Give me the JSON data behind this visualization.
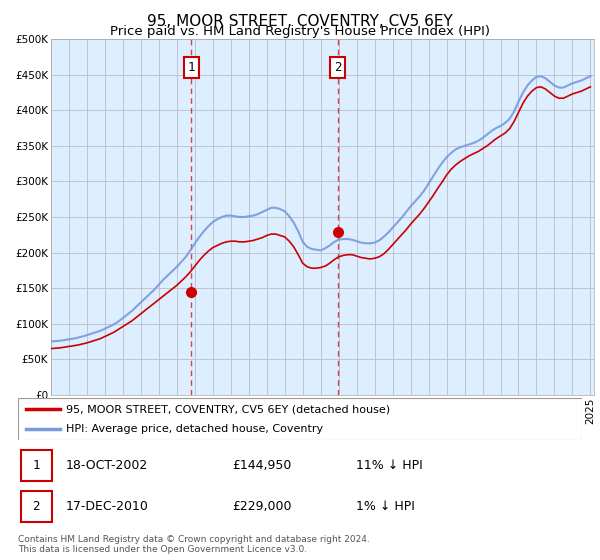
{
  "title": "95, MOOR STREET, COVENTRY, CV5 6EY",
  "subtitle": "Price paid vs. HM Land Registry's House Price Index (HPI)",
  "ylim": [
    0,
    500000
  ],
  "yticks": [
    0,
    50000,
    100000,
    150000,
    200000,
    250000,
    300000,
    350000,
    400000,
    450000,
    500000
  ],
  "ytick_labels": [
    "£0",
    "£50K",
    "£100K",
    "£150K",
    "£200K",
    "£250K",
    "£300K",
    "£350K",
    "£400K",
    "£450K",
    "£500K"
  ],
  "background_color": "#ffffff",
  "plot_bg_color": "#ddeeff",
  "grid_color": "#bbbbcc",
  "hpi_color": "#7799dd",
  "price_color": "#cc0000",
  "legend_entry1": "95, MOOR STREET, COVENTRY, CV5 6EY (detached house)",
  "legend_entry2": "HPI: Average price, detached house, Coventry",
  "table_row1": [
    "1",
    "18-OCT-2002",
    "£144,950",
    "11% ↓ HPI"
  ],
  "table_row2": [
    "2",
    "17-DEC-2010",
    "£229,000",
    "1% ↓ HPI"
  ],
  "footer": "Contains HM Land Registry data © Crown copyright and database right 2024.\nThis data is licensed under the Open Government Licence v3.0.",
  "title_fontsize": 11,
  "subtitle_fontsize": 9.5,
  "tick_fontsize": 7.5,
  "date1": 2002.79,
  "date2": 2010.96,
  "sale1_price": 144950,
  "sale2_price": 229000,
  "years": [
    1995.0,
    1995.25,
    1995.5,
    1995.75,
    1996.0,
    1996.25,
    1996.5,
    1996.75,
    1997.0,
    1997.25,
    1997.5,
    1997.75,
    1998.0,
    1998.25,
    1998.5,
    1998.75,
    1999.0,
    1999.25,
    1999.5,
    1999.75,
    2000.0,
    2000.25,
    2000.5,
    2000.75,
    2001.0,
    2001.25,
    2001.5,
    2001.75,
    2002.0,
    2002.25,
    2002.5,
    2002.75,
    2003.0,
    2003.25,
    2003.5,
    2003.75,
    2004.0,
    2004.25,
    2004.5,
    2004.75,
    2005.0,
    2005.25,
    2005.5,
    2005.75,
    2006.0,
    2006.25,
    2006.5,
    2006.75,
    2007.0,
    2007.25,
    2007.5,
    2007.75,
    2008.0,
    2008.25,
    2008.5,
    2008.75,
    2009.0,
    2009.25,
    2009.5,
    2009.75,
    2010.0,
    2010.25,
    2010.5,
    2010.75,
    2011.0,
    2011.25,
    2011.5,
    2011.75,
    2012.0,
    2012.25,
    2012.5,
    2012.75,
    2013.0,
    2013.25,
    2013.5,
    2013.75,
    2014.0,
    2014.25,
    2014.5,
    2014.75,
    2015.0,
    2015.25,
    2015.5,
    2015.75,
    2016.0,
    2016.25,
    2016.5,
    2016.75,
    2017.0,
    2017.25,
    2017.5,
    2017.75,
    2018.0,
    2018.25,
    2018.5,
    2018.75,
    2019.0,
    2019.25,
    2019.5,
    2019.75,
    2020.0,
    2020.25,
    2020.5,
    2020.75,
    2021.0,
    2021.25,
    2021.5,
    2021.75,
    2022.0,
    2022.25,
    2022.5,
    2022.75,
    2023.0,
    2023.25,
    2023.5,
    2023.75,
    2024.0,
    2024.25,
    2024.5,
    2024.75,
    2025.0
  ],
  "hpi": [
    75000,
    75500,
    76000,
    77000,
    78000,
    79000,
    80500,
    82000,
    84000,
    86000,
    88000,
    90000,
    93000,
    96000,
    99000,
    103000,
    108000,
    113000,
    118000,
    124000,
    130000,
    136000,
    142000,
    148000,
    155000,
    162000,
    168000,
    174000,
    180000,
    187000,
    194000,
    203000,
    213000,
    222000,
    230000,
    237000,
    243000,
    247000,
    250000,
    252000,
    252000,
    251000,
    250000,
    250000,
    251000,
    252000,
    254000,
    257000,
    260000,
    263000,
    263000,
    261000,
    258000,
    251000,
    242000,
    230000,
    215000,
    208000,
    205000,
    204000,
    203000,
    206000,
    210000,
    215000,
    218000,
    219000,
    219000,
    218000,
    216000,
    214000,
    213000,
    213000,
    214000,
    217000,
    222000,
    228000,
    235000,
    242000,
    249000,
    257000,
    265000,
    272000,
    279000,
    287000,
    297000,
    307000,
    317000,
    326000,
    334000,
    340000,
    345000,
    348000,
    350000,
    352000,
    354000,
    357000,
    361000,
    366000,
    371000,
    375000,
    378000,
    382000,
    388000,
    398000,
    412000,
    425000,
    435000,
    442000,
    447000,
    448000,
    445000,
    440000,
    435000,
    432000,
    432000,
    435000,
    438000,
    440000,
    442000,
    445000,
    448000
  ],
  "price_paid": [
    65000,
    65500,
    66000,
    67000,
    68000,
    69000,
    70000,
    71500,
    73000,
    75000,
    77000,
    79000,
    82000,
    85000,
    88000,
    92000,
    96000,
    100000,
    104000,
    109000,
    114000,
    119000,
    124000,
    129000,
    134000,
    139000,
    144000,
    149000,
    154000,
    160000,
    166000,
    173000,
    181000,
    189000,
    196000,
    202000,
    207000,
    210000,
    213000,
    215000,
    216000,
    216000,
    215000,
    215000,
    216000,
    217000,
    219000,
    221000,
    224000,
    226000,
    226000,
    224000,
    222000,
    216000,
    208000,
    197000,
    185000,
    180000,
    178000,
    178000,
    179000,
    181000,
    185000,
    190000,
    194000,
    196000,
    197000,
    197000,
    195000,
    193000,
    192000,
    191000,
    192000,
    194000,
    198000,
    204000,
    211000,
    218000,
    225000,
    232000,
    240000,
    247000,
    254000,
    262000,
    271000,
    280000,
    290000,
    299000,
    309000,
    317000,
    323000,
    328000,
    332000,
    336000,
    339000,
    342000,
    346000,
    350000,
    355000,
    360000,
    364000,
    368000,
    374000,
    384000,
    397000,
    410000,
    420000,
    427000,
    432000,
    433000,
    430000,
    425000,
    420000,
    417000,
    417000,
    420000,
    423000,
    425000,
    427000,
    430000,
    433000
  ]
}
